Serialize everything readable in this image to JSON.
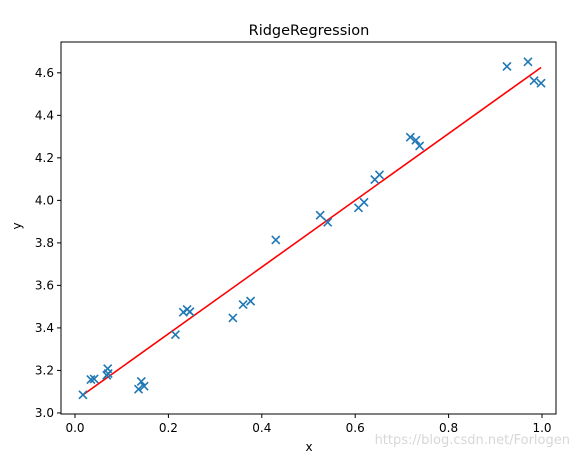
{
  "chart_data": {
    "type": "scatter",
    "title": "RidgeRegression",
    "xlabel": "x",
    "ylabel": "y",
    "xlim": [
      -0.03,
      1.03
    ],
    "ylim": [
      2.995,
      4.745
    ],
    "xticks": [
      0.0,
      0.2,
      0.4,
      0.6,
      0.8,
      1.0
    ],
    "xtick_labels": [
      "0.0",
      "0.2",
      "0.4",
      "0.6",
      "0.8",
      "1.0"
    ],
    "yticks": [
      3.0,
      3.2,
      3.4,
      3.6,
      3.8,
      4.0,
      4.2,
      4.4,
      4.6
    ],
    "ytick_labels": [
      "3.0",
      "3.2",
      "3.4",
      "3.6",
      "3.8",
      "4.0",
      "4.2",
      "4.4",
      "4.6"
    ],
    "grid": false,
    "series": [
      {
        "marker": "x",
        "color": "#1f77b4",
        "points": [
          [
            0.017,
            3.085
          ],
          [
            0.034,
            3.157
          ],
          [
            0.041,
            3.16
          ],
          [
            0.068,
            3.177
          ],
          [
            0.07,
            3.208
          ],
          [
            0.071,
            3.185
          ],
          [
            0.136,
            3.112
          ],
          [
            0.142,
            3.148
          ],
          [
            0.148,
            3.126
          ],
          [
            0.215,
            3.368
          ],
          [
            0.232,
            3.474
          ],
          [
            0.24,
            3.487
          ],
          [
            0.246,
            3.476
          ],
          [
            0.338,
            3.447
          ],
          [
            0.36,
            3.51
          ],
          [
            0.376,
            3.526
          ],
          [
            0.43,
            3.814
          ],
          [
            0.525,
            3.93
          ],
          [
            0.541,
            3.897
          ],
          [
            0.607,
            3.965
          ],
          [
            0.619,
            3.991
          ],
          [
            0.642,
            4.098
          ],
          [
            0.652,
            4.12
          ],
          [
            0.718,
            4.297
          ],
          [
            0.73,
            4.283
          ],
          [
            0.738,
            4.256
          ],
          [
            0.925,
            4.63
          ],
          [
            0.97,
            4.652
          ],
          [
            0.983,
            4.563
          ],
          [
            0.998,
            4.551
          ]
        ]
      },
      {
        "type": "line",
        "color": "#ff0000",
        "points": [
          [
            0.017,
            3.085
          ],
          [
            0.998,
            4.625
          ]
        ]
      }
    ]
  },
  "watermark": "https://blog.csdn.net/Forlogen"
}
